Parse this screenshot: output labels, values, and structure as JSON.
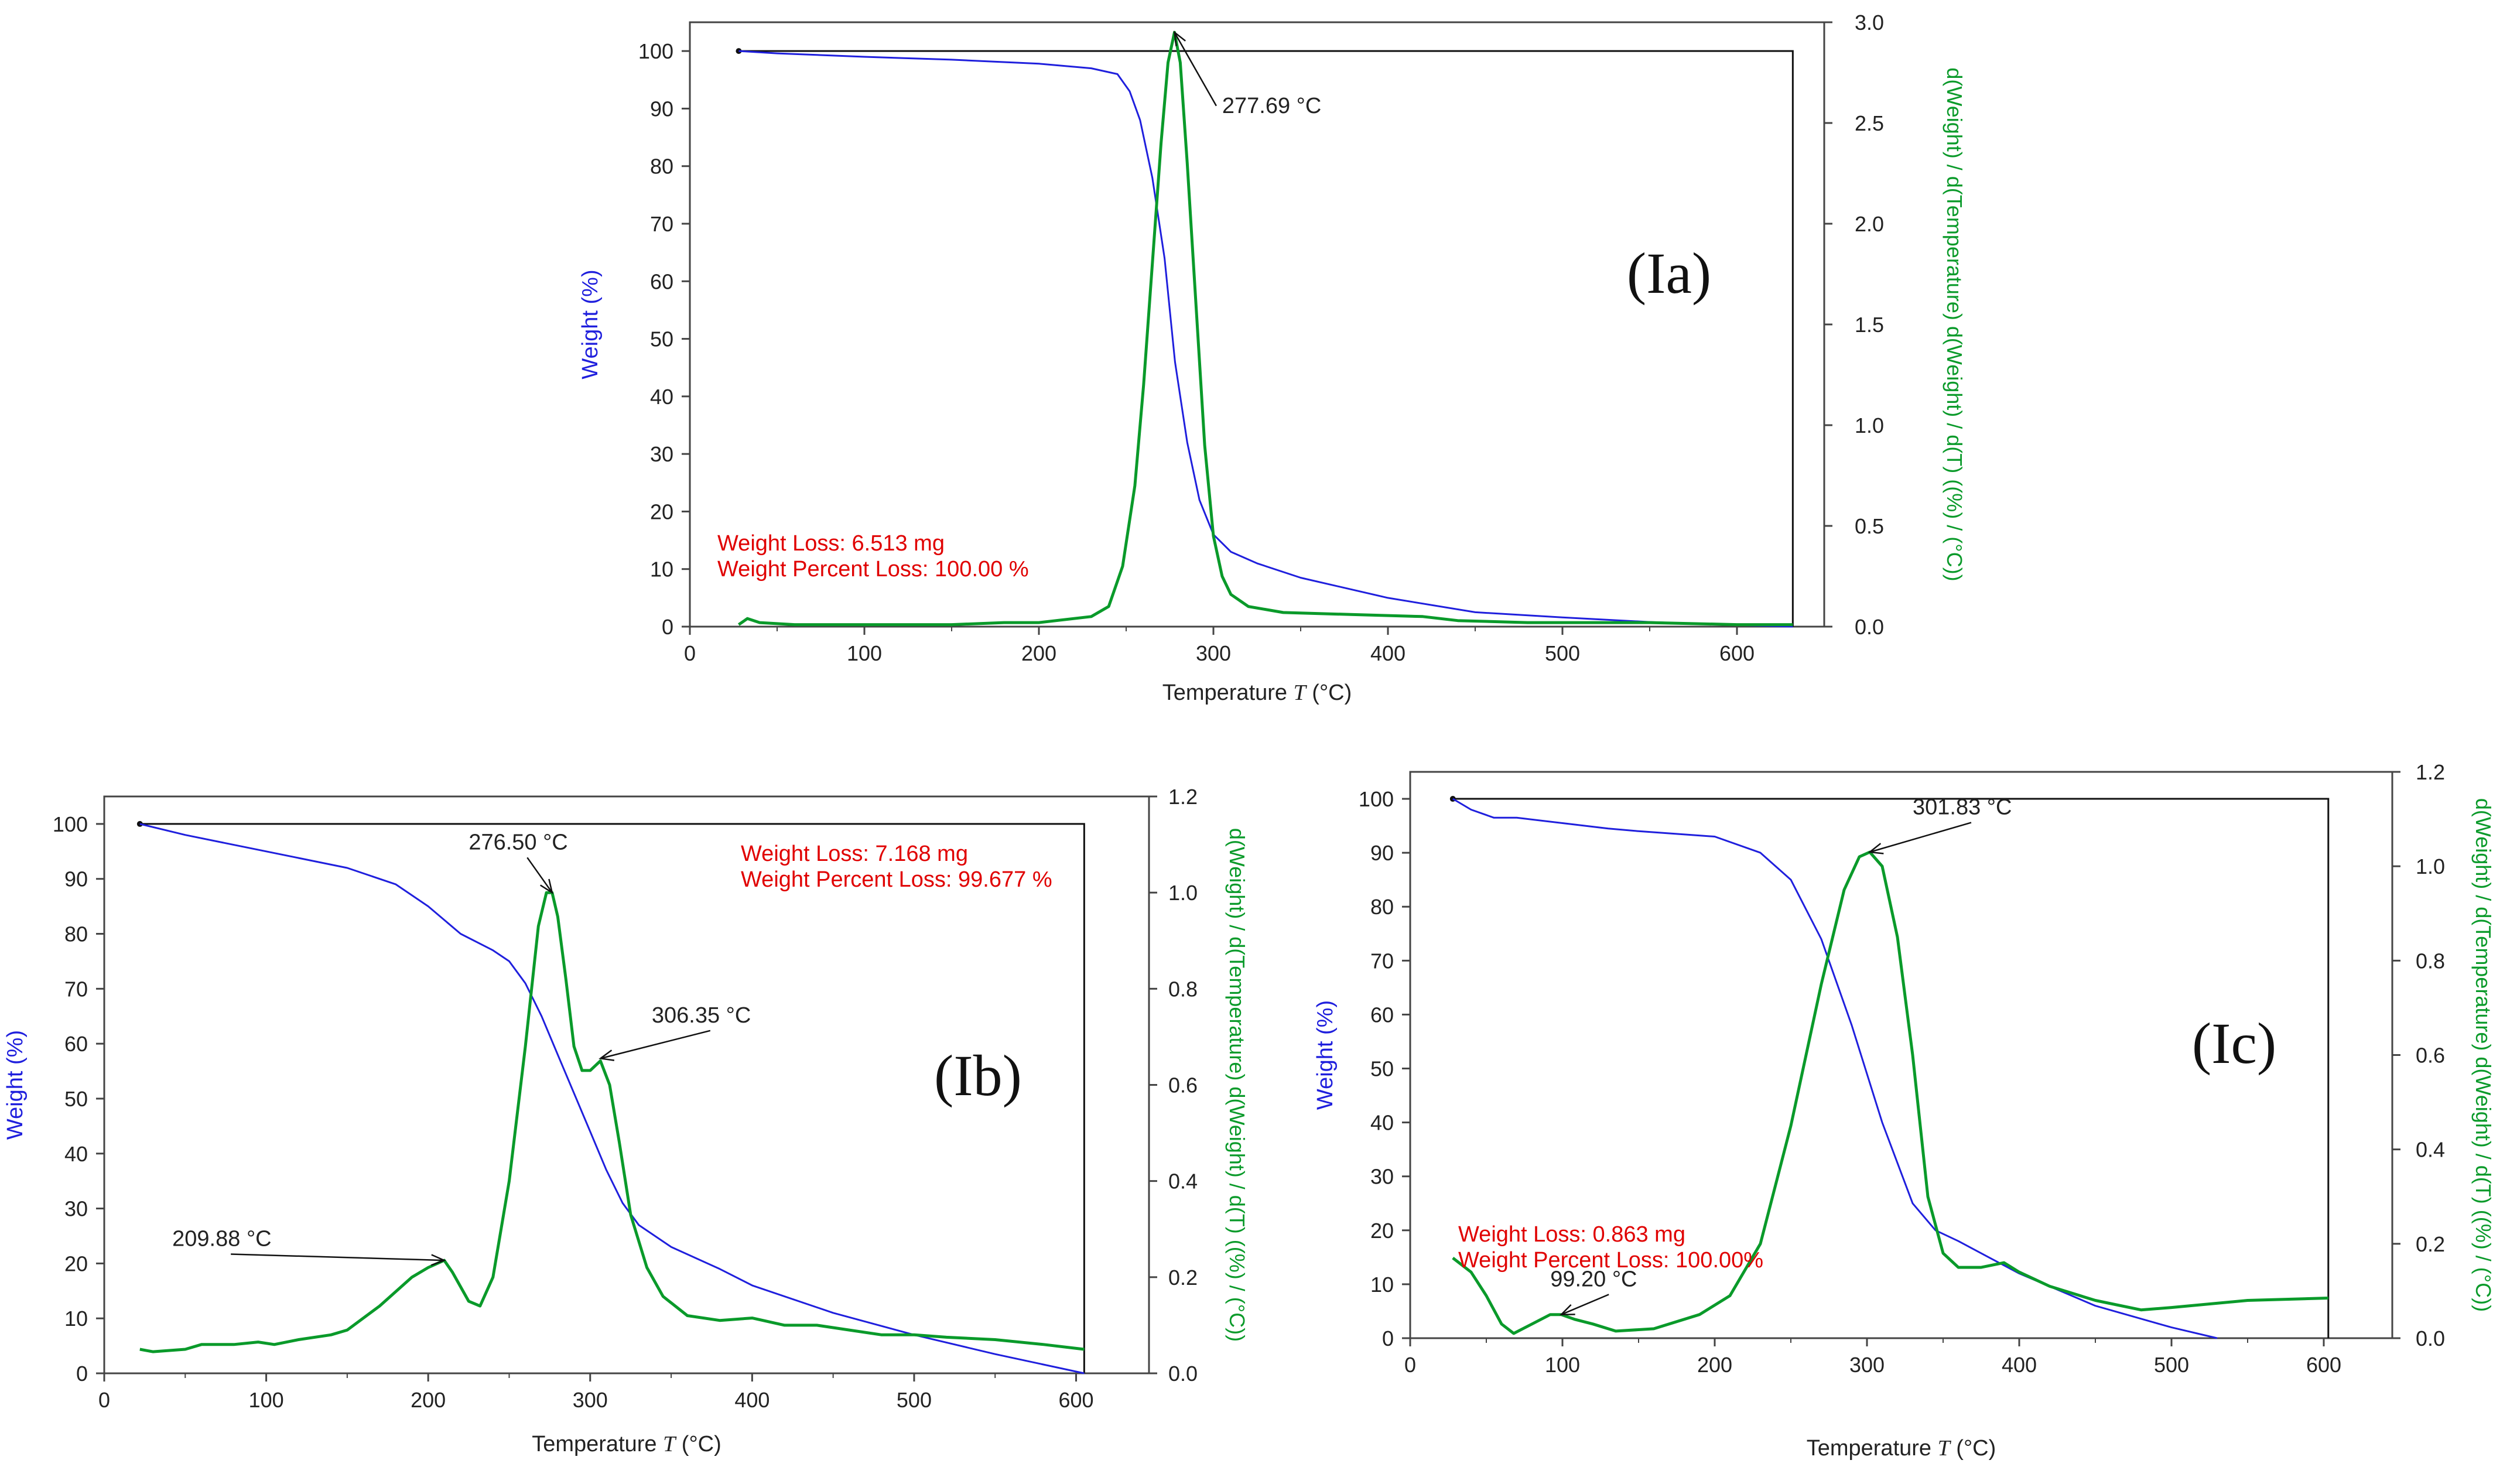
{
  "colors": {
    "weight": "#1f1fdd",
    "derivative": "#0a9a2a",
    "loss_text": "#e00000",
    "axis": "#444444"
  },
  "chart_data": [
    {
      "type": "line",
      "panel_label": "(Ia)",
      "xlabel_prefix": "Temperature ",
      "xlabel_var": "T",
      "xlabel_unit": " (°C)",
      "ylabel": "Weight (%)",
      "y2label": "d(Weight) / d(Temperature) d(Weight) / d(T) ((%) / (°C))",
      "xlim": [
        0,
        650
      ],
      "ylim": [
        0,
        105
      ],
      "y2lim": [
        0,
        3.0
      ],
      "x_ticks": [
        0,
        100,
        200,
        300,
        400,
        500,
        600
      ],
      "y_ticks": [
        0,
        10,
        20,
        30,
        40,
        50,
        60,
        70,
        80,
        90,
        100
      ],
      "y2_ticks": [
        0.0,
        0.5,
        1.0,
        1.5,
        2.0,
        2.5,
        3.0
      ],
      "y2_tick_labels": [
        "0.0",
        "0.5",
        "1.0",
        "1.5",
        "2.0",
        "2.5",
        "3.0"
      ],
      "loss_text": [
        "Weight Loss: 6.513 mg",
        "Weight Percent Loss: 100.00 %"
      ],
      "step": {
        "x_start": 28,
        "x_end": 632,
        "y_top": 100,
        "y_bottom": 0
      },
      "series": [
        {
          "name": "Weight",
          "axis": "left",
          "x": [
            28,
            50,
            100,
            150,
            200,
            230,
            245,
            252,
            258,
            265,
            272,
            278,
            285,
            292,
            300,
            310,
            325,
            350,
            400,
            450,
            500,
            550,
            600,
            632
          ],
          "y": [
            100,
            99.6,
            99,
            98.5,
            97.8,
            97,
            96,
            93,
            88,
            78,
            64,
            46,
            32,
            22,
            16,
            13,
            11,
            8.5,
            5,
            2.5,
            1.6,
            0.8,
            0.3,
            0
          ]
        },
        {
          "name": "Deriv. Weight",
          "axis": "right",
          "x": [
            28,
            33,
            40,
            60,
            100,
            150,
            180,
            200,
            230,
            240,
            248,
            255,
            260,
            265,
            270,
            274,
            277.69,
            281,
            285,
            290,
            295,
            300,
            305,
            310,
            320,
            340,
            380,
            420,
            440,
            480,
            550,
            600,
            632
          ],
          "y": [
            0.01,
            0.04,
            0.02,
            0.01,
            0.01,
            0.01,
            0.02,
            0.02,
            0.05,
            0.1,
            0.3,
            0.7,
            1.2,
            1.8,
            2.4,
            2.8,
            2.95,
            2.8,
            2.3,
            1.6,
            0.9,
            0.45,
            0.25,
            0.16,
            0.1,
            0.07,
            0.06,
            0.05,
            0.03,
            0.02,
            0.02,
            0.01,
            0.01
          ]
        }
      ],
      "annotations": [
        {
          "text": "277.69 °C",
          "x": 277.69,
          "y2": 2.95,
          "label_x": 305,
          "label_y2": 2.55
        }
      ]
    },
    {
      "type": "line",
      "panel_label": "(Ib)",
      "xlabel_prefix": "Temperature ",
      "xlabel_var": "T",
      "xlabel_unit": " (°C)",
      "ylabel": "Weight (%)",
      "y2label": "d(Weight) / d(Temperature) d(Weight) / d(T) ((%) / (°C))",
      "xlim": [
        0,
        645
      ],
      "ylim": [
        0,
        105
      ],
      "y2lim": [
        0,
        1.2
      ],
      "x_ticks": [
        0,
        100,
        200,
        300,
        400,
        500,
        600
      ],
      "y_ticks": [
        0,
        10,
        20,
        30,
        40,
        50,
        60,
        70,
        80,
        90,
        100
      ],
      "y2_ticks": [
        0.0,
        0.2,
        0.4,
        0.6,
        0.8,
        1.0,
        1.2
      ],
      "y2_tick_labels": [
        "0.0",
        "0.2",
        "0.4",
        "0.6",
        "0.8",
        "1.0",
        "1.2"
      ],
      "loss_text": [
        "Weight Loss: 7.168 mg",
        "Weight Percent Loss: 99.677 %"
      ],
      "step": {
        "x_start": 22,
        "x_end": 605,
        "y_top": 100,
        "y_bottom": 0
      },
      "series": [
        {
          "name": "Weight",
          "axis": "left",
          "x": [
            22,
            50,
            100,
            150,
            180,
            200,
            220,
            240,
            250,
            260,
            270,
            280,
            290,
            300,
            310,
            320,
            330,
            350,
            380,
            400,
            450,
            500,
            550,
            605
          ],
          "y": [
            100,
            98,
            95,
            92,
            89,
            85,
            80,
            77,
            75,
            71,
            65,
            58,
            51,
            44,
            37,
            31,
            27,
            23,
            19,
            16,
            11,
            7,
            3.5,
            0
          ]
        },
        {
          "name": "Deriv. Weight",
          "axis": "right",
          "x": [
            22,
            30,
            50,
            60,
            80,
            95,
            105,
            120,
            140,
            150,
            170,
            190,
            200,
            209.88,
            215,
            225,
            232,
            240,
            250,
            260,
            268,
            273,
            276.5,
            280,
            285,
            290,
            295,
            300,
            306.35,
            312,
            318,
            325,
            335,
            345,
            360,
            380,
            400,
            420,
            440,
            460,
            480,
            500,
            520,
            550,
            580,
            605
          ],
          "y": [
            0.05,
            0.045,
            0.05,
            0.06,
            0.06,
            0.065,
            0.06,
            0.07,
            0.08,
            0.09,
            0.14,
            0.2,
            0.22,
            0.235,
            0.21,
            0.15,
            0.14,
            0.2,
            0.4,
            0.68,
            0.93,
            1.0,
            1.0,
            0.95,
            0.82,
            0.68,
            0.63,
            0.63,
            0.65,
            0.6,
            0.48,
            0.33,
            0.22,
            0.16,
            0.12,
            0.11,
            0.115,
            0.1,
            0.1,
            0.09,
            0.08,
            0.08,
            0.075,
            0.07,
            0.06,
            0.05
          ]
        }
      ],
      "annotations": [
        {
          "text": "209.88 °C",
          "x": 209.88,
          "y2": 0.235,
          "label_x": 42,
          "label_y2": 0.265
        },
        {
          "text": "276.50 °C",
          "x": 276.5,
          "y2": 1.0,
          "label_x": 225,
          "label_y2": 1.09
        },
        {
          "text": "306.35 °C",
          "x": 306.35,
          "y2": 0.655,
          "label_x": 338,
          "label_y2": 0.73
        }
      ]
    },
    {
      "type": "line",
      "panel_label": "(Ic)",
      "xlabel_prefix": "Temperature ",
      "xlabel_var": "T",
      "xlabel_unit": " (°C)",
      "ylabel": "Weight (%)",
      "y2label": "d(Weight) / d(Temperature) d(Weight) / d(T) ((%) / (°C))",
      "xlim": [
        0,
        645
      ],
      "ylim": [
        0,
        105
      ],
      "y2lim": [
        0,
        1.2
      ],
      "x_ticks": [
        0,
        100,
        200,
        300,
        400,
        500,
        600
      ],
      "y_ticks": [
        0,
        10,
        20,
        30,
        40,
        50,
        60,
        70,
        80,
        90,
        100
      ],
      "y2_ticks": [
        0.0,
        0.2,
        0.4,
        0.6,
        0.8,
        1.0,
        1.2
      ],
      "y2_tick_labels": [
        "0.0",
        "0.2",
        "0.4",
        "0.6",
        "0.8",
        "1.0",
        "1.2"
      ],
      "loss_text": [
        "Weight Loss: 0.863 mg",
        "Weight Percent Loss: 100.00%"
      ],
      "step": {
        "x_start": 28,
        "x_end": 603,
        "y_top": 100,
        "y_bottom": 0
      },
      "series": [
        {
          "name": "Weight",
          "axis": "left",
          "x": [
            28,
            40,
            55,
            70,
            100,
            130,
            150,
            200,
            230,
            250,
            270,
            290,
            310,
            330,
            345,
            360,
            380,
            400,
            450,
            500,
            530
          ],
          "y": [
            100,
            98,
            96.5,
            96.5,
            95.5,
            94.5,
            94,
            93,
            90,
            85,
            74,
            58,
            40,
            25,
            20,
            18,
            15,
            12,
            6,
            2,
            0
          ]
        },
        {
          "name": "Deriv. Weight",
          "axis": "right",
          "x": [
            28,
            40,
            50,
            60,
            68,
            80,
            92,
            99.2,
            108,
            120,
            135,
            160,
            190,
            210,
            230,
            250,
            270,
            285,
            295,
            301.83,
            310,
            320,
            330,
            340,
            350,
            360,
            375,
            390,
            400,
            420,
            450,
            480,
            500,
            550,
            603
          ],
          "y": [
            0.17,
            0.14,
            0.09,
            0.03,
            0.01,
            0.03,
            0.05,
            0.05,
            0.04,
            0.03,
            0.015,
            0.02,
            0.05,
            0.09,
            0.2,
            0.45,
            0.75,
            0.95,
            1.02,
            1.03,
            1.0,
            0.85,
            0.6,
            0.3,
            0.18,
            0.15,
            0.15,
            0.16,
            0.14,
            0.11,
            0.08,
            0.06,
            0.065,
            0.08,
            0.085
          ]
        }
      ],
      "annotations": [
        {
          "text": "301.83 °C",
          "x": 301.83,
          "y2": 1.03,
          "label_x": 330,
          "label_y2": 1.11
        },
        {
          "text": "99.20 °C",
          "x": 99.2,
          "y2": 0.05,
          "label_x": 92,
          "label_y2": 0.11
        }
      ]
    }
  ]
}
